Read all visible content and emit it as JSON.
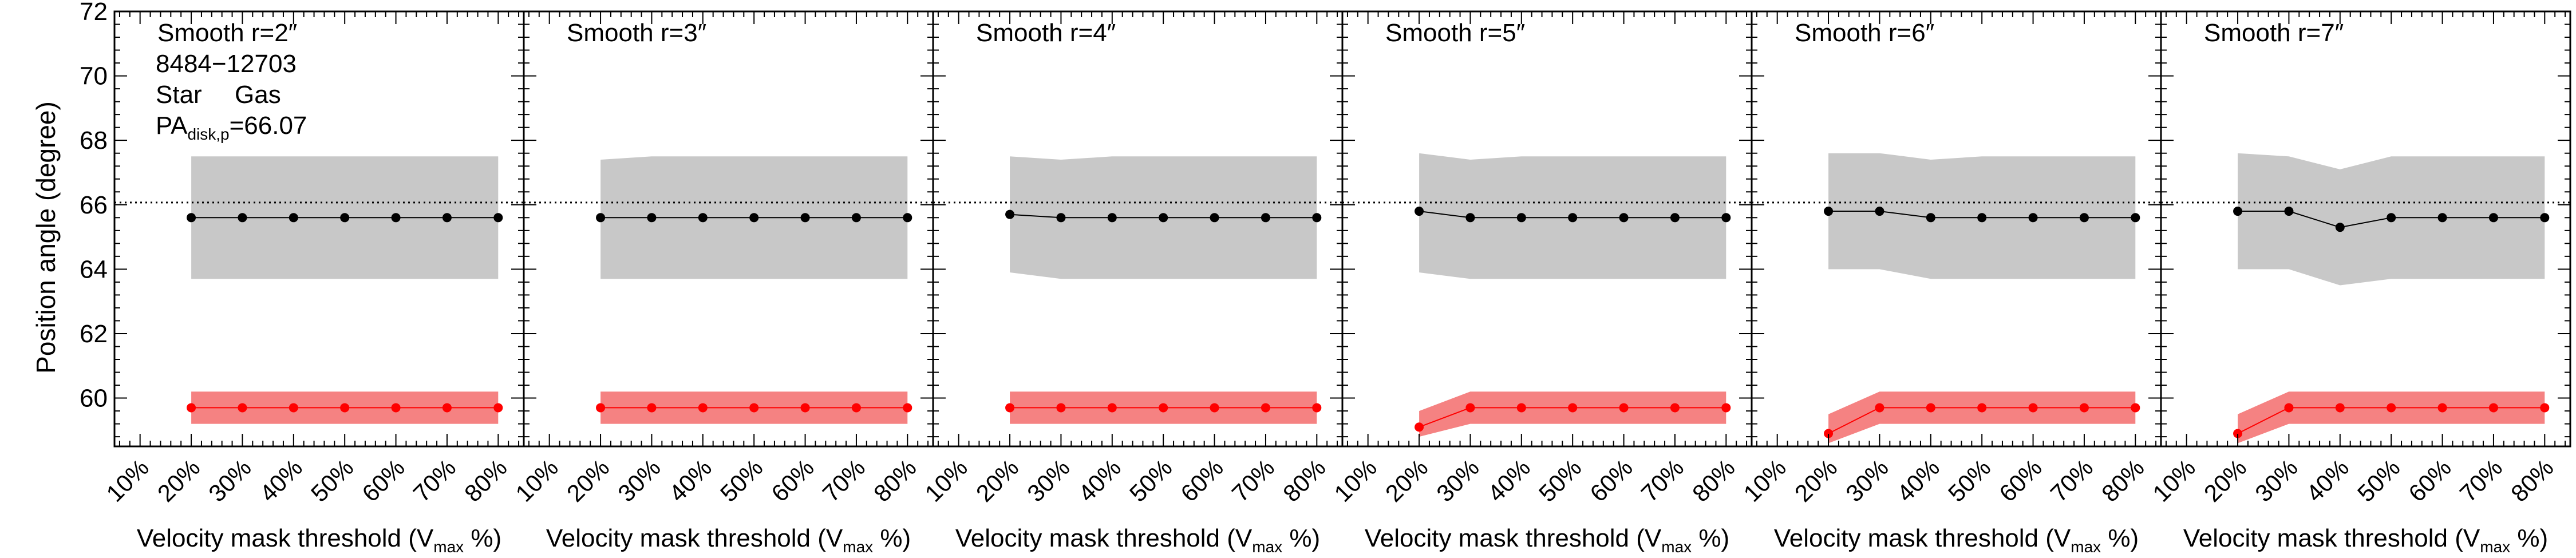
{
  "figure": {
    "ylabel": "Position angle (degree)",
    "galaxy_id": "8484−12703",
    "legend": {
      "star_label": "Star",
      "gas_label": "Gas",
      "pa_label_main": "PA",
      "pa_label_sub": "disk,p",
      "pa_value": "=66.07"
    },
    "colors": {
      "star": "#000000",
      "star_band": "#c8c8c8",
      "gas": "#ff0000",
      "gas_band": "#f58282",
      "reference": "#000000"
    }
  },
  "chart_data": [
    {
      "type": "line",
      "title": "Smooth r=2″",
      "xlabel_main": "Velocity mask threshold (V",
      "xlabel_sub": "max",
      "xlabel_end": " %)",
      "categories": [
        "10%",
        "20%",
        "30%",
        "40%",
        "50%",
        "60%",
        "70%",
        "80%"
      ],
      "x": [
        20,
        30,
        40,
        50,
        60,
        70,
        80
      ],
      "xlim": [
        5,
        85
      ],
      "ylim": [
        58.5,
        72
      ],
      "yticks": [
        60,
        62,
        64,
        66,
        68,
        70,
        72
      ],
      "reference_line": 66.07,
      "series": [
        {
          "name": "Star",
          "values": [
            65.6,
            65.6,
            65.6,
            65.6,
            65.6,
            65.6,
            65.6
          ],
          "band_low": [
            63.7,
            63.7,
            63.7,
            63.7,
            63.7,
            63.7,
            63.7
          ],
          "band_high": [
            67.5,
            67.5,
            67.5,
            67.5,
            67.5,
            67.5,
            67.5
          ]
        },
        {
          "name": "Gas",
          "values": [
            59.7,
            59.7,
            59.7,
            59.7,
            59.7,
            59.7,
            59.7
          ],
          "band_low": [
            59.2,
            59.2,
            59.2,
            59.2,
            59.2,
            59.2,
            59.2
          ],
          "band_high": [
            60.2,
            60.2,
            60.2,
            60.2,
            60.2,
            60.2,
            60.2
          ]
        }
      ]
    },
    {
      "type": "line",
      "title": "Smooth r=3″",
      "xlabel_main": "Velocity mask threshold (V",
      "xlabel_sub": "max",
      "xlabel_end": " %)",
      "categories": [
        "10%",
        "20%",
        "30%",
        "40%",
        "50%",
        "60%",
        "70%",
        "80%"
      ],
      "x": [
        20,
        30,
        40,
        50,
        60,
        70,
        80
      ],
      "xlim": [
        5,
        85
      ],
      "ylim": [
        58.5,
        72
      ],
      "yticks": [
        60,
        62,
        64,
        66,
        68,
        70,
        72
      ],
      "reference_line": 66.07,
      "series": [
        {
          "name": "Star",
          "values": [
            65.6,
            65.6,
            65.6,
            65.6,
            65.6,
            65.6,
            65.6
          ],
          "band_low": [
            63.7,
            63.7,
            63.7,
            63.7,
            63.7,
            63.7,
            63.7
          ],
          "band_high": [
            67.4,
            67.5,
            67.5,
            67.5,
            67.5,
            67.5,
            67.5
          ]
        },
        {
          "name": "Gas",
          "values": [
            59.7,
            59.7,
            59.7,
            59.7,
            59.7,
            59.7,
            59.7
          ],
          "band_low": [
            59.2,
            59.2,
            59.2,
            59.2,
            59.2,
            59.2,
            59.2
          ],
          "band_high": [
            60.2,
            60.2,
            60.2,
            60.2,
            60.2,
            60.2,
            60.2
          ]
        }
      ]
    },
    {
      "type": "line",
      "title": "Smooth r=4″",
      "xlabel_main": "Velocity mask threshold (V",
      "xlabel_sub": "max",
      "xlabel_end": " %)",
      "categories": [
        "10%",
        "20%",
        "30%",
        "40%",
        "50%",
        "60%",
        "70%",
        "80%"
      ],
      "x": [
        20,
        30,
        40,
        50,
        60,
        70,
        80
      ],
      "xlim": [
        5,
        85
      ],
      "ylim": [
        58.5,
        72
      ],
      "yticks": [
        60,
        62,
        64,
        66,
        68,
        70,
        72
      ],
      "reference_line": 66.07,
      "series": [
        {
          "name": "Star",
          "values": [
            65.7,
            65.6,
            65.6,
            65.6,
            65.6,
            65.6,
            65.6
          ],
          "band_low": [
            63.9,
            63.7,
            63.7,
            63.7,
            63.7,
            63.7,
            63.7
          ],
          "band_high": [
            67.5,
            67.4,
            67.5,
            67.5,
            67.5,
            67.5,
            67.5
          ]
        },
        {
          "name": "Gas",
          "values": [
            59.7,
            59.7,
            59.7,
            59.7,
            59.7,
            59.7,
            59.7
          ],
          "band_low": [
            59.2,
            59.2,
            59.2,
            59.2,
            59.2,
            59.2,
            59.2
          ],
          "band_high": [
            60.2,
            60.2,
            60.2,
            60.2,
            60.2,
            60.2,
            60.2
          ]
        }
      ]
    },
    {
      "type": "line",
      "title": "Smooth r=5″",
      "xlabel_main": "Velocity mask threshold (V",
      "xlabel_sub": "max",
      "xlabel_end": " %)",
      "categories": [
        "10%",
        "20%",
        "30%",
        "40%",
        "50%",
        "60%",
        "70%",
        "80%"
      ],
      "x": [
        20,
        30,
        40,
        50,
        60,
        70,
        80
      ],
      "xlim": [
        5,
        85
      ],
      "ylim": [
        58.5,
        72
      ],
      "yticks": [
        60,
        62,
        64,
        66,
        68,
        70,
        72
      ],
      "reference_line": 66.07,
      "series": [
        {
          "name": "Star",
          "values": [
            65.8,
            65.6,
            65.6,
            65.6,
            65.6,
            65.6,
            65.6
          ],
          "band_low": [
            63.9,
            63.7,
            63.7,
            63.7,
            63.7,
            63.7,
            63.7
          ],
          "band_high": [
            67.6,
            67.4,
            67.5,
            67.5,
            67.5,
            67.5,
            67.5
          ]
        },
        {
          "name": "Gas",
          "values": [
            59.1,
            59.7,
            59.7,
            59.7,
            59.7,
            59.7,
            59.7
          ],
          "band_low": [
            58.8,
            59.2,
            59.2,
            59.2,
            59.2,
            59.2,
            59.2
          ],
          "band_high": [
            59.6,
            60.2,
            60.2,
            60.2,
            60.2,
            60.2,
            60.2
          ]
        }
      ]
    },
    {
      "type": "line",
      "title": "Smooth r=6″",
      "xlabel_main": "Velocity mask threshold (V",
      "xlabel_sub": "max",
      "xlabel_end": " %)",
      "categories": [
        "10%",
        "20%",
        "30%",
        "40%",
        "50%",
        "60%",
        "70%",
        "80%"
      ],
      "x": [
        20,
        30,
        40,
        50,
        60,
        70,
        80
      ],
      "xlim": [
        5,
        85
      ],
      "ylim": [
        58.5,
        72
      ],
      "yticks": [
        60,
        62,
        64,
        66,
        68,
        70,
        72
      ],
      "reference_line": 66.07,
      "series": [
        {
          "name": "Star",
          "values": [
            65.8,
            65.8,
            65.6,
            65.6,
            65.6,
            65.6,
            65.6
          ],
          "band_low": [
            64.0,
            64.0,
            63.7,
            63.7,
            63.7,
            63.7,
            63.7
          ],
          "band_high": [
            67.6,
            67.6,
            67.4,
            67.5,
            67.5,
            67.5,
            67.5
          ]
        },
        {
          "name": "Gas",
          "values": [
            58.9,
            59.7,
            59.7,
            59.7,
            59.7,
            59.7,
            59.7
          ],
          "band_low": [
            58.6,
            59.2,
            59.2,
            59.2,
            59.2,
            59.2,
            59.2
          ],
          "band_high": [
            59.5,
            60.2,
            60.2,
            60.2,
            60.2,
            60.2,
            60.2
          ]
        }
      ]
    },
    {
      "type": "line",
      "title": "Smooth r=7″",
      "xlabel_main": "Velocity mask threshold (V",
      "xlabel_sub": "max",
      "xlabel_end": " %)",
      "categories": [
        "10%",
        "20%",
        "30%",
        "40%",
        "50%",
        "60%",
        "70%",
        "80%"
      ],
      "x": [
        20,
        30,
        40,
        50,
        60,
        70,
        80
      ],
      "xlim": [
        5,
        85
      ],
      "ylim": [
        58.5,
        72
      ],
      "yticks": [
        60,
        62,
        64,
        66,
        68,
        70,
        72
      ],
      "reference_line": 66.07,
      "series": [
        {
          "name": "Star",
          "values": [
            65.8,
            65.8,
            65.3,
            65.6,
            65.6,
            65.6,
            65.6
          ],
          "band_low": [
            64.0,
            64.0,
            63.5,
            63.7,
            63.7,
            63.7,
            63.7
          ],
          "band_high": [
            67.6,
            67.5,
            67.1,
            67.5,
            67.5,
            67.5,
            67.5
          ]
        },
        {
          "name": "Gas",
          "values": [
            58.9,
            59.7,
            59.7,
            59.7,
            59.7,
            59.7,
            59.7
          ],
          "band_low": [
            58.6,
            59.2,
            59.2,
            59.2,
            59.2,
            59.2,
            59.2
          ],
          "band_high": [
            59.5,
            60.2,
            60.2,
            60.2,
            60.2,
            60.2,
            60.2
          ]
        }
      ]
    }
  ]
}
